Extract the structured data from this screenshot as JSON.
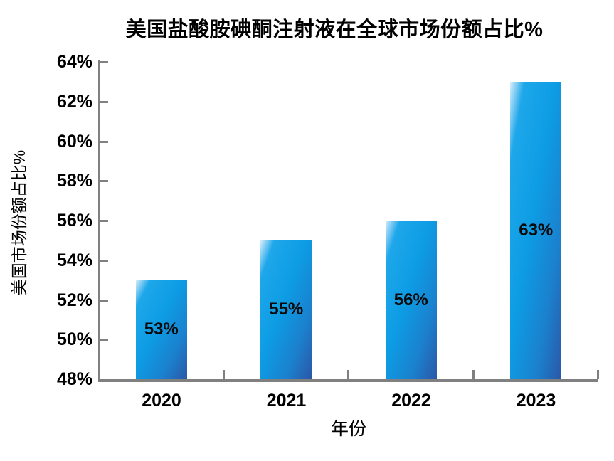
{
  "chart_data": {
    "type": "bar",
    "title": "美国盐酸胺碘酮注射液在全球市场份额占比%",
    "xlabel": "年份",
    "ylabel": "美国市场份额占比%",
    "categories": [
      "2020",
      "2021",
      "2022",
      "2023"
    ],
    "values": [
      53,
      55,
      56,
      63
    ],
    "data_labels": [
      "53%",
      "55%",
      "56%",
      "63%"
    ],
    "ylim": [
      48,
      64
    ],
    "ytick_step": 2,
    "ytick_labels": [
      "48%",
      "50%",
      "52%",
      "54%",
      "56%",
      "58%",
      "60%",
      "62%",
      "64%"
    ],
    "grid": false,
    "legend": "none",
    "colors": {
      "bar_gradient_start": "#d7edfb",
      "bar_gradient_light": "#1ea7ea",
      "bar_gradient_mid": "#0d9ce4",
      "bar_gradient_deep": "#1b80cd",
      "bar_gradient_end": "#2b57a7",
      "axis": "#808080",
      "text": "#000000",
      "background": "#ffffff"
    }
  }
}
